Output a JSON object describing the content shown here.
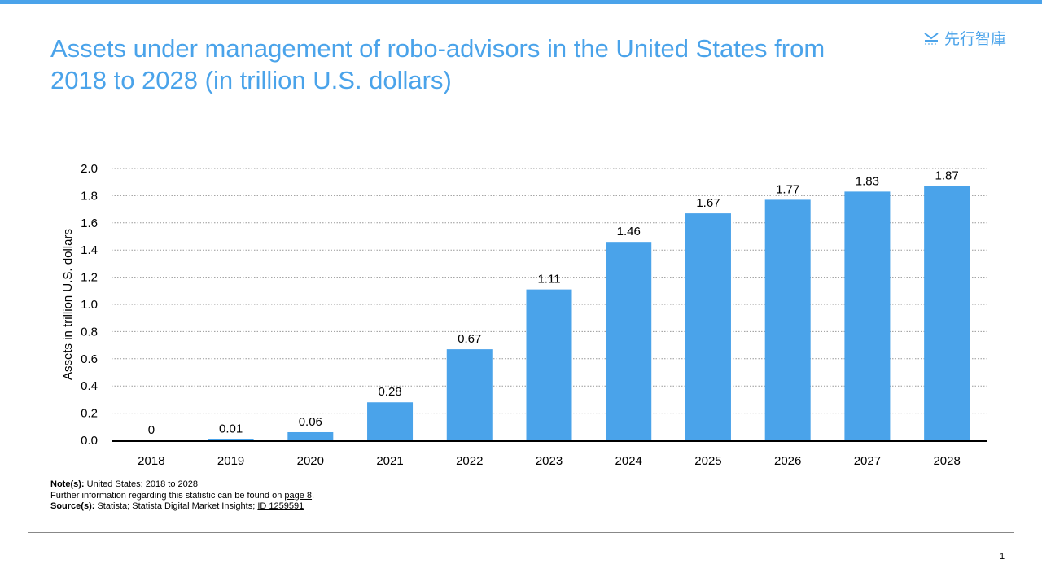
{
  "title": "Assets under management of robo-advisors in the United States from 2018 to 2028 (in trillion U.S. dollars)",
  "logo_text": "先行智庫",
  "colors": {
    "accent": "#4aa3ea",
    "bar": "#4aa3ea"
  },
  "chart_data": {
    "type": "bar",
    "title": "",
    "xlabel": "",
    "ylabel": "Assets in trillion U.S. dollars",
    "categories": [
      "2018",
      "2019",
      "2020",
      "2021",
      "2022",
      "2023",
      "2024",
      "2025",
      "2026",
      "2027",
      "2028"
    ],
    "values": [
      0,
      0.01,
      0.06,
      0.28,
      0.67,
      1.11,
      1.46,
      1.67,
      1.77,
      1.83,
      1.87
    ],
    "data_labels": [
      "0",
      "0.01",
      "0.06",
      "0.28",
      "0.67",
      "1.11",
      "1.46",
      "1.67",
      "1.77",
      "1.83",
      "1.87"
    ],
    "ylim": [
      0,
      2.0
    ],
    "yticks": [
      "0.0",
      "0.2",
      "0.4",
      "0.6",
      "0.8",
      "1.0",
      "1.2",
      "1.4",
      "1.6",
      "1.8",
      "2.0"
    ],
    "grid": true,
    "grid_style": "dotted horizontal"
  },
  "notes": {
    "note_label": "Note(s):",
    "note_text": "United States; 2018 to 2028",
    "further_text": "Further information regarding this statistic can be found on",
    "further_link": "page 8",
    "further_end": ".",
    "source_label": "Source(s):",
    "source_text": "Statista; Statista Digital Market Insights;",
    "source_link": "ID 1259591"
  },
  "page_number": "1"
}
